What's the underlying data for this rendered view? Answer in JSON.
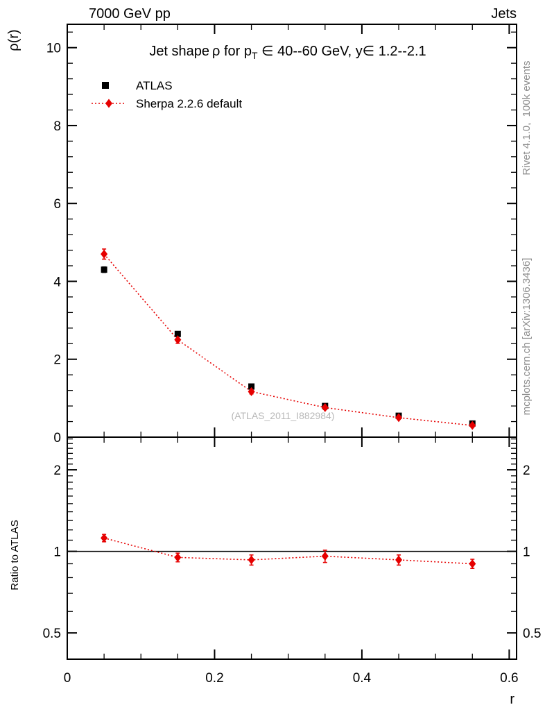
{
  "header": {
    "left": "7000 GeV pp",
    "right": "Jets"
  },
  "sidebar_right": {
    "top": "Rivet 4.1.0,  100k events",
    "bottom": "mcplots.cern.ch [arXiv:1306.3436]"
  },
  "chart_data": {
    "type": "scatter",
    "title_parts": {
      "pre": "Jet shape ρ for p",
      "sub": "T",
      "post": " ∈ 40--60 GeV, y∈ 1.2--2.1"
    },
    "watermark": "(ATLAS_2011_I882984)",
    "xlabel": "r",
    "ylabel_top": "ρ(r)",
    "ylabel_ratio": "Ratio to ATLAS",
    "x": [
      0.05,
      0.15,
      0.25,
      0.35,
      0.45,
      0.55
    ],
    "xlim": [
      0,
      0.61
    ],
    "xticks": [
      0,
      0.2,
      0.4,
      0.6
    ],
    "xtick_labels": [
      "0",
      "0.2",
      "0.4",
      "0.6"
    ],
    "x_minor_step": 0.05,
    "top_panel": {
      "scale": "linear",
      "ylim": [
        0,
        10.6
      ],
      "yticks": [
        0,
        2,
        4,
        6,
        8,
        10
      ],
      "ytick_labels": [
        "0",
        "2",
        "4",
        "6",
        "8",
        "10"
      ],
      "y_minor_step": 0.4
    },
    "ratio_panel": {
      "scale": "log",
      "ylim": [
        0.4,
        2.64
      ],
      "yticks": [
        0.5,
        1,
        2
      ],
      "ytick_labels": [
        "0.5",
        "1",
        "2"
      ],
      "reference_line": 1
    },
    "series": [
      {
        "name": "ATLAS",
        "marker": "square",
        "color": "#000000",
        "values": [
          4.3,
          2.65,
          1.3,
          0.8,
          0.55,
          0.35
        ],
        "errors": [
          0.07,
          0.05,
          0.04,
          0.03,
          0.03,
          0.03
        ]
      },
      {
        "name": "Sherpa 2.2.6 default",
        "marker": "diamond",
        "color": "#e60000",
        "line": "dotted",
        "values": [
          4.7,
          2.5,
          1.17,
          0.76,
          0.5,
          0.3
        ],
        "errors": [
          0.13,
          0.09,
          0.06,
          0.05,
          0.04,
          0.04
        ]
      }
    ],
    "ratio_series": {
      "name": "Sherpa 2.2.6 default",
      "marker": "diamond",
      "color": "#e60000",
      "line": "dotted",
      "values": [
        1.12,
        0.95,
        0.93,
        0.96,
        0.93,
        0.9
      ],
      "errors": [
        0.035,
        0.035,
        0.04,
        0.05,
        0.04,
        0.035
      ]
    }
  }
}
